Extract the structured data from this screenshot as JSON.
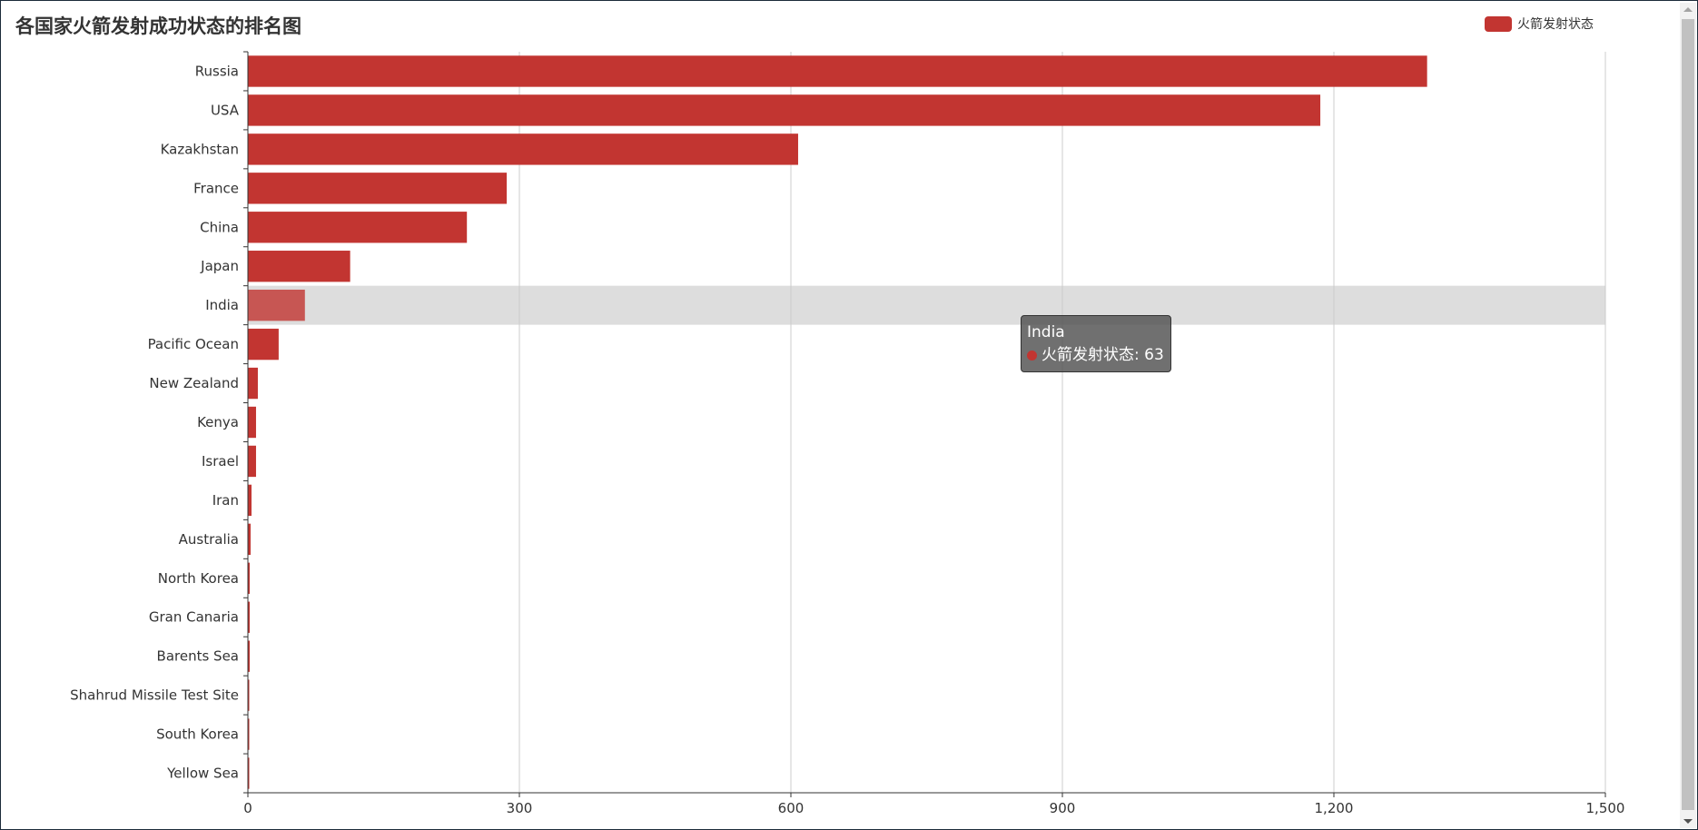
{
  "chart_data": {
    "type": "bar",
    "orientation": "horizontal",
    "title": "各国家火箭发射成功状态的排名图",
    "categories": [
      "Russia",
      "USA",
      "Kazakhstan",
      "France",
      "China",
      "Japan",
      "India",
      "Pacific Ocean",
      "New Zealand",
      "Kenya",
      "Israel",
      "Iran",
      "Australia",
      "North Korea",
      "Gran Canaria",
      "Barents Sea",
      "Shahrud Missile Test Site",
      "South Korea",
      "Yellow Sea"
    ],
    "series": [
      {
        "name": "火箭发射状态",
        "color": "#c23531",
        "values": [
          1303,
          1185,
          608,
          286,
          242,
          113,
          63,
          34,
          11,
          9,
          9,
          4,
          3,
          2,
          2,
          2,
          1,
          1,
          1
        ]
      }
    ],
    "xlim": [
      0,
      1500
    ],
    "x_ticks": [
      "0",
      "300",
      "600",
      "900",
      "1,200",
      "1,500"
    ],
    "x_tick_values": [
      0,
      300,
      600,
      900,
      1200,
      1500
    ],
    "grid": true,
    "legend_position": "top-right",
    "highlighted_category": "India",
    "tooltip": {
      "title": "India",
      "series_name": "火箭发射状态",
      "value_text": "63"
    }
  }
}
